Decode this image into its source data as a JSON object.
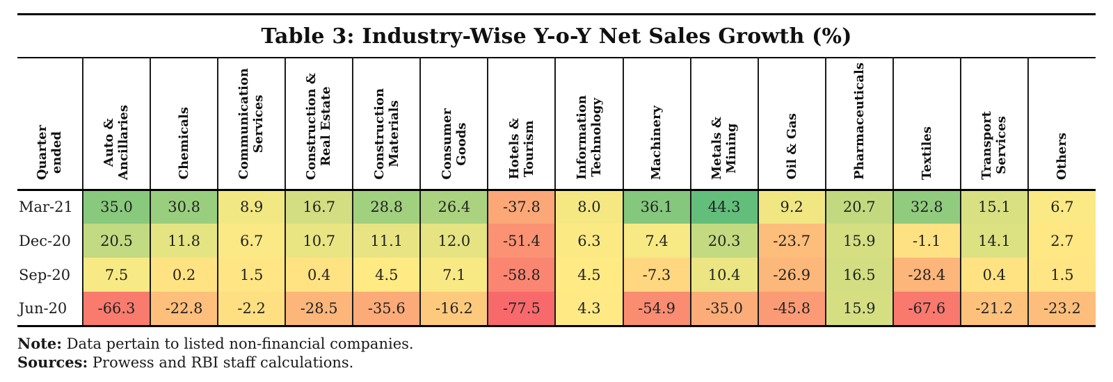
{
  "page": {
    "title": "Table 3: Industry-Wise Y-o-Y Net Sales Growth (%)",
    "note": {
      "label": "Note:",
      "text": " Data pertain to listed non-financial companies."
    },
    "sources": {
      "label": "Sources:",
      "text": " Prowess and RBI staff calculations."
    }
  },
  "chart_data": {
    "type": "heatmap",
    "title": "Table 3: Industry-Wise Y-o-Y Net Sales Growth (%)",
    "value_unit": "percent",
    "row_axis_label": "Quarter\nended",
    "columns": [
      "Auto &\nAncillaries",
      "Chemicals",
      "Communication\nServices",
      "Construction &\nReal Estate",
      "Construction\nMaterials",
      "Consumer\nGoods",
      "Hotels &\nTourism",
      "Information\nTechnology",
      "Machinery",
      "Metals &\nMining",
      "Oil & Gas",
      "Pharmaceuticals",
      "Textiles",
      "Transport\nServices",
      "Others"
    ],
    "rows": [
      {
        "quarter": "Mar-21",
        "values": [
          35.0,
          30.8,
          8.9,
          16.7,
          28.8,
          26.4,
          -37.8,
          8.0,
          36.1,
          44.3,
          9.2,
          20.7,
          32.8,
          15.1,
          6.7
        ]
      },
      {
        "quarter": "Dec-20",
        "values": [
          20.5,
          11.8,
          6.7,
          10.7,
          11.1,
          12.0,
          -51.4,
          6.3,
          7.4,
          20.3,
          -23.7,
          15.9,
          -1.1,
          14.1,
          2.7
        ]
      },
      {
        "quarter": "Sep-20",
        "values": [
          7.5,
          0.2,
          1.5,
          0.4,
          4.5,
          7.1,
          -58.8,
          4.5,
          -7.3,
          10.4,
          -26.9,
          16.5,
          -28.4,
          0.4,
          1.5
        ]
      },
      {
        "quarter": "Jun-20",
        "values": [
          -66.3,
          -22.8,
          -2.2,
          -28.5,
          -35.6,
          -16.2,
          -77.5,
          4.3,
          -54.9,
          -35.0,
          -45.8,
          15.9,
          -67.6,
          -21.2,
          -23.2
        ]
      }
    ],
    "color_scale": {
      "min_value": -77.5,
      "mid_value": 5.4,
      "max_value": 44.3,
      "min_color": "#F8696B",
      "mid_color": "#FFEB84",
      "max_color": "#63BE7B"
    },
    "decimals": 1,
    "grid": true,
    "legend": false
  }
}
